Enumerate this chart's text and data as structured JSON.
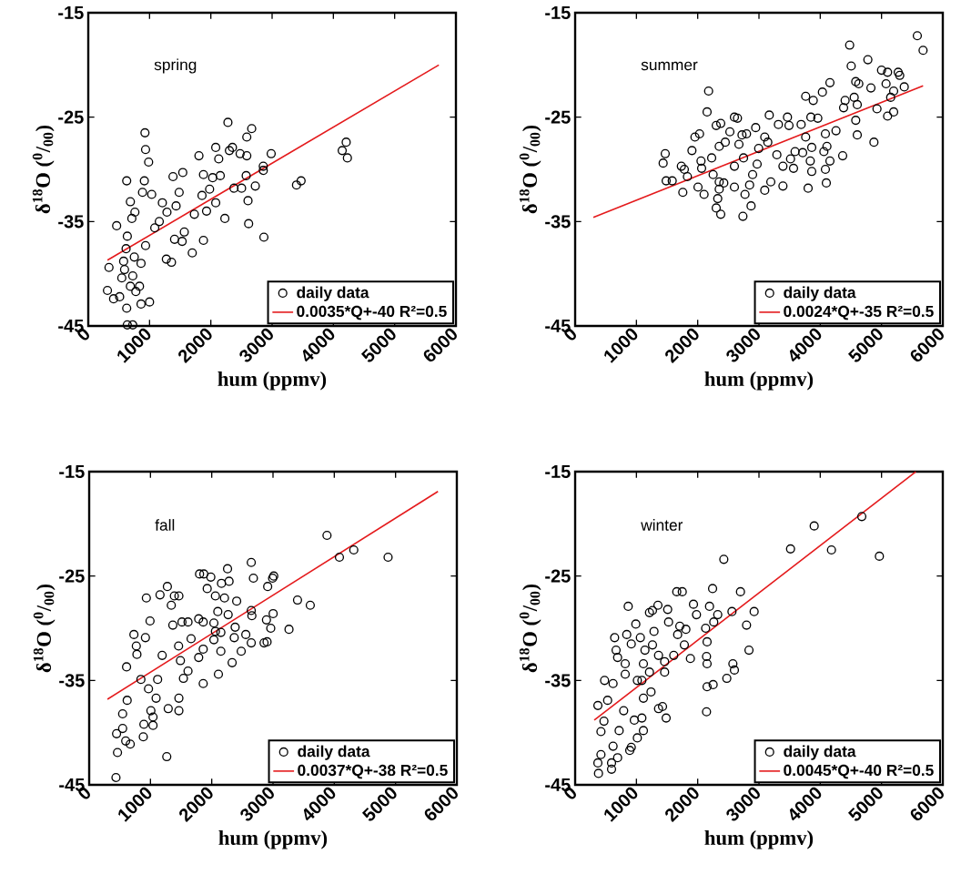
{
  "chart_data": [
    {
      "type": "scatter",
      "annotations": [
        "spring"
      ],
      "xlabel": "hum (ppmv)",
      "ylabel": "δ$^{18}$O ($^{0}$/$_{00}$)",
      "xlim": [
        0,
        6000
      ],
      "ylim": [
        -45,
        -15
      ],
      "xticks": [
        0,
        1000,
        2000,
        3000,
        4000,
        5000,
        6000
      ],
      "yticks": [
        -45,
        -35,
        -25,
        -15
      ],
      "legend": "bottom right",
      "series": [
        {
          "name": "daily data",
          "marker": "circle",
          "color": "#000000",
          "x": [
            338,
            313,
            413,
            512,
            627,
            637,
            726,
            627,
            463,
            687,
            925,
            935,
            985,
            915,
            885,
            1035,
            761,
            711,
            637,
            617,
            751,
            592,
            547,
            726,
            687,
            836,
            861,
            1000,
            861,
            935,
            1085,
            1209,
            1284,
            1159,
            1274,
            1358,
            1383,
            1433,
            1483,
            1542,
            1567,
            1408,
            1532,
            1697,
            1731,
            1806,
            1880,
            1880,
            1856,
            1930,
            2080,
            2030,
            2129,
            2154,
            2229,
            2080,
            1980,
            2279,
            2353,
            2303,
            2478,
            2587,
            2587,
            2667,
            2577,
            2378,
            2502,
            2726,
            2607,
            2617,
            2866,
            2856,
            2856,
            2985,
            3398,
            3473,
            4144,
            4209,
            4229,
            776,
            577
          ],
          "values": [
            -39.4,
            -41.6,
            -42.4,
            -42.2,
            -43.3,
            -44.9,
            -44.9,
            -31.1,
            -35.4,
            -33.1,
            -26.5,
            -28.1,
            -29.3,
            -31.1,
            -32.2,
            -32.4,
            -34.1,
            -34.7,
            -36.4,
            -37.6,
            -38.4,
            -39.6,
            -40.4,
            -40.2,
            -41.2,
            -41.2,
            -42.9,
            -42.7,
            -39.0,
            -37.3,
            -35.6,
            -33.2,
            -34.1,
            -35.0,
            -38.6,
            -38.9,
            -30.7,
            -33.5,
            -32.2,
            -30.3,
            -36.0,
            -36.7,
            -36.9,
            -38.0,
            -34.3,
            -28.7,
            -36.8,
            -30.5,
            -32.5,
            -34.0,
            -27.9,
            -30.8,
            -29.0,
            -30.6,
            -34.7,
            -33.2,
            -31.9,
            -25.5,
            -27.9,
            -28.2,
            -28.5,
            -28.7,
            -26.9,
            -26.1,
            -30.6,
            -31.8,
            -31.8,
            -31.6,
            -33.0,
            -35.2,
            -36.5,
            -29.7,
            -30.1,
            -28.5,
            -31.5,
            -31.1,
            -28.2,
            -27.4,
            -28.9,
            -41.7,
            -38.8
          ]
        },
        {
          "name": "0.0035*Q+-40 R²=0.5",
          "type": "line",
          "color": "#e41a1c",
          "x": [
            313,
            5721
          ],
          "values": [
            -38.7,
            -20.0
          ]
        }
      ]
    },
    {
      "type": "scatter",
      "annotations": [
        "summer"
      ],
      "xlabel": "hum (ppmv)",
      "ylabel": "δ$^{18}$O ($^{0}$/$_{00}$)",
      "xlim": [
        0,
        6000
      ],
      "ylim": [
        -45,
        -15
      ],
      "xticks": [
        0,
        1000,
        2000,
        3000,
        4000,
        5000,
        6000
      ],
      "yticks": [
        -45,
        -35,
        -25,
        -15
      ],
      "legend": "bottom right",
      "series": [
        {
          "name": "daily data",
          "marker": "circle",
          "color": "#000000",
          "x": [
            5584,
            5678,
            4480,
            4505,
            4777,
            5000,
            5099,
            5272,
            5297,
            5074,
            5371,
            5198,
            5149,
            4827,
            4579,
            4629,
            4406,
            4554,
            4604,
            4381,
            4579,
            4604,
            4926,
            5099,
            5198,
            4876,
            4366,
            4158,
            4035,
            3762,
            3886,
            3960,
            3847,
            3688,
            3762,
            4084,
            4257,
            4109,
            4059,
            4158,
            4084,
            4099,
            3802,
            3861,
            3837,
            3861,
            3713,
            3589,
            3465,
            3490,
            3317,
            3168,
            3094,
            3144,
            3292,
            3515,
            3564,
            3391,
            3391,
            3193,
            3094,
            2970,
            2896,
            2847,
            2995,
            2946,
            2797,
            2748,
            2723,
            2649,
            2599,
            2525,
            2673,
            2599,
            2599,
            2772,
            2871,
            2738,
            2376,
            2302,
            2450,
            2351,
            2228,
            2252,
            2351,
            2426,
            2351,
            2327,
            2302,
            2376,
            2178,
            2153,
            2030,
            1955,
            1906,
            2054,
            2064,
            2104,
            2005,
            1832,
            1782,
            1733,
            1757,
            1470,
            1436,
            1485,
            1584
          ],
          "values": [
            -17.2,
            -18.6,
            -18.1,
            -20.1,
            -19.5,
            -20.5,
            -20.7,
            -20.7,
            -21.0,
            -21.8,
            -22.1,
            -22.5,
            -23.1,
            -22.2,
            -21.6,
            -21.8,
            -23.4,
            -23.1,
            -23.8,
            -24.1,
            -25.3,
            -26.7,
            -24.2,
            -24.9,
            -24.5,
            -27.4,
            -28.7,
            -21.7,
            -22.6,
            -23.0,
            -23.4,
            -25.1,
            -25.0,
            -25.7,
            -26.9,
            -26.6,
            -26.3,
            -27.8,
            -28.3,
            -29.2,
            -30.0,
            -31.3,
            -31.8,
            -30.2,
            -29.2,
            -27.9,
            -28.4,
            -28.3,
            -25.0,
            -25.8,
            -25.7,
            -24.8,
            -26.9,
            -27.4,
            -28.6,
            -29.0,
            -29.9,
            -29.7,
            -31.6,
            -31.2,
            -32.0,
            -29.5,
            -30.5,
            -31.5,
            -28.0,
            -26.0,
            -26.6,
            -28.9,
            -26.7,
            -25.1,
            -25.0,
            -26.4,
            -27.6,
            -29.7,
            -31.7,
            -32.4,
            -33.5,
            -34.5,
            -25.6,
            -25.8,
            -27.4,
            -27.8,
            -28.9,
            -30.5,
            -31.2,
            -31.3,
            -31.9,
            -32.8,
            -33.7,
            -34.3,
            -22.5,
            -24.5,
            -26.6,
            -26.9,
            -28.2,
            -29.2,
            -29.9,
            -32.4,
            -31.7,
            -30.7,
            -30.0,
            -29.7,
            -32.2,
            -28.5,
            -29.4,
            -31.1,
            -31.1
          ]
        },
        {
          "name": "0.0024*Q+-35 R²=0.5",
          "type": "line",
          "color": "#e41a1c",
          "x": [
            297,
            5678
          ],
          "values": [
            -34.6,
            -22.0
          ]
        }
      ]
    },
    {
      "type": "scatter",
      "annotations": [
        "fall"
      ],
      "xlabel": "hum (ppmv)",
      "ylabel": "δ$^{18}$O ($^{0}$/$_{00}$)",
      "xlim": [
        0,
        6000
      ],
      "ylim": [
        -45,
        -15
      ],
      "xticks": [
        0,
        1000,
        2000,
        3000,
        4000,
        5000,
        6000
      ],
      "yticks": [
        -45,
        -35,
        -25,
        -15
      ],
      "legend": "bottom right",
      "series": [
        {
          "name": "daily data",
          "marker": "circle",
          "color": "#000000",
          "x": [
            437,
            462,
            447,
            546,
            596,
            670,
            883,
            893,
            1042,
            546,
            620,
            610,
            730,
            769,
            779,
            933,
            993,
            918,
            844,
            968,
            1007,
            1042,
            1092,
            1117,
            1156,
            1276,
            1290,
            1266,
            1191,
            1340,
            1390,
            1464,
            1365,
            1514,
            1613,
            1459,
            1489,
            1613,
            1538,
            1464,
            1464,
            1663,
            1787,
            1861,
            1801,
            1871,
            1985,
            2159,
            1926,
            2060,
            2099,
            2035,
            2060,
            2035,
            2149,
            1861,
            1787,
            1861,
            2109,
            2149,
            2258,
            2283,
            2208,
            2407,
            2268,
            2382,
            2367,
            2333,
            2481,
            2556,
            2645,
            2680,
            2645,
            2655,
            2645,
            2854,
            2903,
            2893,
            2963,
            2913,
            2993,
            3012,
            3002,
            3261,
            3400,
            3608,
            3881,
            4084,
            4318,
            4878
          ],
          "values": [
            -44.3,
            -41.9,
            -40.1,
            -39.6,
            -40.8,
            -41.1,
            -40.4,
            -39.2,
            -39.3,
            -38.2,
            -36.9,
            -33.7,
            -30.6,
            -31.7,
            -32.5,
            -27.1,
            -29.3,
            -30.9,
            -34.9,
            -35.8,
            -37.9,
            -38.5,
            -36.7,
            -34.9,
            -26.8,
            -26.0,
            -37.7,
            -42.3,
            -32.6,
            -27.8,
            -26.9,
            -26.9,
            -29.7,
            -29.4,
            -29.4,
            -31.7,
            -33.1,
            -34.1,
            -34.8,
            -36.7,
            -37.9,
            -31.0,
            -29.1,
            -29.4,
            -24.8,
            -24.8,
            -25.1,
            -25.7,
            -26.2,
            -26.9,
            -28.4,
            -29.5,
            -30.3,
            -31.1,
            -30.4,
            -32.0,
            -32.8,
            -35.3,
            -34.4,
            -32.2,
            -24.3,
            -25.5,
            -27.1,
            -27.4,
            -28.7,
            -29.9,
            -30.9,
            -33.3,
            -32.2,
            -30.6,
            -23.7,
            -25.2,
            -28.3,
            -28.8,
            -31.4,
            -31.4,
            -31.3,
            -29.2,
            -30.0,
            -26.0,
            -25.2,
            -25.0,
            -28.6,
            -30.1,
            -27.3,
            -27.8,
            -21.1,
            -23.2,
            -22.5,
            -23.2
          ]
        },
        {
          "name": "0.0037*Q+-38 R²=0.5",
          "type": "line",
          "color": "#e41a1c",
          "x": [
            298,
            5692
          ],
          "values": [
            -36.8,
            -16.9
          ]
        }
      ]
    },
    {
      "type": "scatter",
      "annotations": [
        "winter"
      ],
      "xlabel": "hum (ppmv)",
      "ylabel": "δ$^{18}$O ($^{0}$/$_{00}$)",
      "xlim": [
        0,
        6000
      ],
      "ylim": [
        -45,
        -15
      ],
      "xticks": [
        0,
        1000,
        2000,
        3000,
        4000,
        5000,
        6000
      ],
      "yticks": [
        -45,
        -35,
        -25,
        -15
      ],
      "legend": "bottom right",
      "series": [
        {
          "name": "daily data",
          "marker": "circle",
          "color": "#000000",
          "x": [
            381,
            371,
            421,
            594,
            594,
            371,
            421,
            470,
            480,
            530,
            619,
            644,
            668,
            693,
            619,
            693,
            718,
            792,
            817,
            817,
            842,
            866,
            891,
            916,
            916,
            990,
            1015,
            965,
            1015,
            1089,
            1114,
            1089,
            1114,
            1114,
            1064,
            1139,
            1213,
            1287,
            1262,
            1262,
            1351,
            1361,
            1238,
            1213,
            1361,
            1426,
            1485,
            1460,
            1460,
            1510,
            1525,
            1609,
            1658,
            1748,
            1708,
            1673,
            1807,
            1782,
            1881,
            1931,
            1980,
            2144,
            2153,
            2252,
            2153,
            2144,
            2153,
            2129,
            2193,
            2243,
            2262,
            2327,
            2426,
            2475,
            2574,
            2599,
            2559,
            2698,
            2797,
            2837,
            2921,
            3515,
            3901,
            4183,
            4678,
            4965
          ],
          "values": [
            -43.9,
            -42.9,
            -42.1,
            -43.5,
            -42.9,
            -37.4,
            -39.9,
            -38.9,
            -35.0,
            -36.9,
            -35.3,
            -30.9,
            -32.1,
            -32.8,
            -41.3,
            -42.4,
            -39.8,
            -37.9,
            -34.4,
            -33.4,
            -30.6,
            -27.9,
            -41.7,
            -41.4,
            -31.5,
            -29.6,
            -35.0,
            -38.8,
            -40.5,
            -38.6,
            -39.8,
            -35.0,
            -36.7,
            -33.4,
            -30.9,
            -32.1,
            -28.5,
            -30.3,
            -31.6,
            -28.3,
            -27.8,
            -32.6,
            -36.1,
            -34.2,
            -37.7,
            -37.5,
            -38.6,
            -34.2,
            -33.2,
            -28.2,
            -29.4,
            -32.6,
            -26.5,
            -26.5,
            -29.8,
            -30.6,
            -30.1,
            -31.6,
            -32.9,
            -27.7,
            -28.7,
            -38.0,
            -35.6,
            -35.4,
            -33.4,
            -32.7,
            -31.3,
            -30.0,
            -27.9,
            -26.2,
            -29.4,
            -28.7,
            -23.4,
            -34.8,
            -33.4,
            -34.0,
            -28.4,
            -26.5,
            -29.7,
            -32.1,
            -28.4,
            -22.4,
            -20.2,
            -22.5,
            -19.3,
            -23.1
          ]
        },
        {
          "name": "0.0045*Q+-40 R²=0.5",
          "type": "line",
          "color": "#e41a1c",
          "x": [
            312,
            5559
          ],
          "values": [
            -38.8,
            -15.0
          ]
        }
      ]
    }
  ]
}
